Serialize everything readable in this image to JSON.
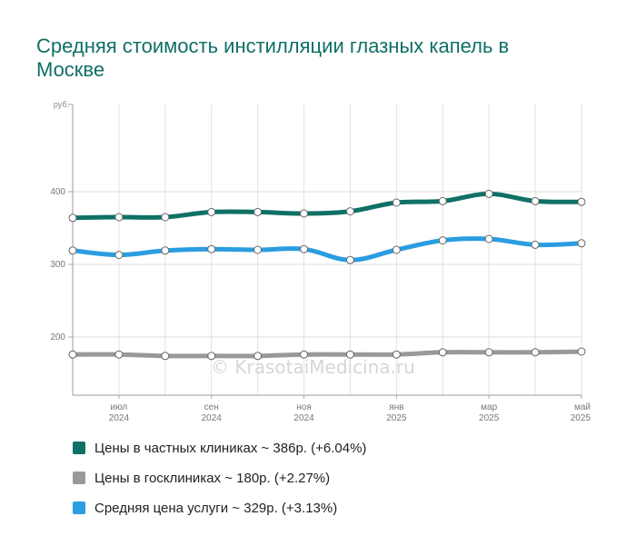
{
  "watermark": "© KrasotaiMedicina.ru",
  "chart_data": {
    "type": "line",
    "title": "Средняя стоимость инстилляции глазных капель в Москве",
    "ylabel": "руб.",
    "ylim": [
      120,
      520
    ],
    "yticks": [
      200,
      300,
      400
    ],
    "grid": true,
    "legend_position": "bottom",
    "xticks": [
      {
        "index": 1,
        "month": "июл",
        "year": "2024"
      },
      {
        "index": 3,
        "month": "сен",
        "year": "2024"
      },
      {
        "index": 5,
        "month": "ноя",
        "year": "2024"
      },
      {
        "index": 7,
        "month": "янв",
        "year": "2025"
      },
      {
        "index": 9,
        "month": "мар",
        "year": "2025"
      },
      {
        "index": 11,
        "month": "май",
        "year": "2025"
      }
    ],
    "x_count": 12,
    "series": [
      {
        "name": "Цены в частных клиниках ~ 386р. (+6.04%)",
        "color": "#0f7166",
        "values": [
          364,
          365,
          365,
          372,
          372,
          370,
          373,
          385,
          387,
          397,
          387,
          386
        ]
      },
      {
        "name": "Цены в госклиниках ~ 180р. (+2.27%)",
        "color": "#999999",
        "values": [
          176,
          176,
          174,
          174,
          174,
          176,
          176,
          176,
          179,
          179,
          179,
          180
        ]
      },
      {
        "name": "Средняя цена услуги ~ 329р. (+3.13%)",
        "color": "#2a9de0",
        "values": [
          319,
          313,
          319,
          321,
          320,
          321,
          306,
          320,
          333,
          335,
          327,
          329
        ]
      }
    ]
  }
}
